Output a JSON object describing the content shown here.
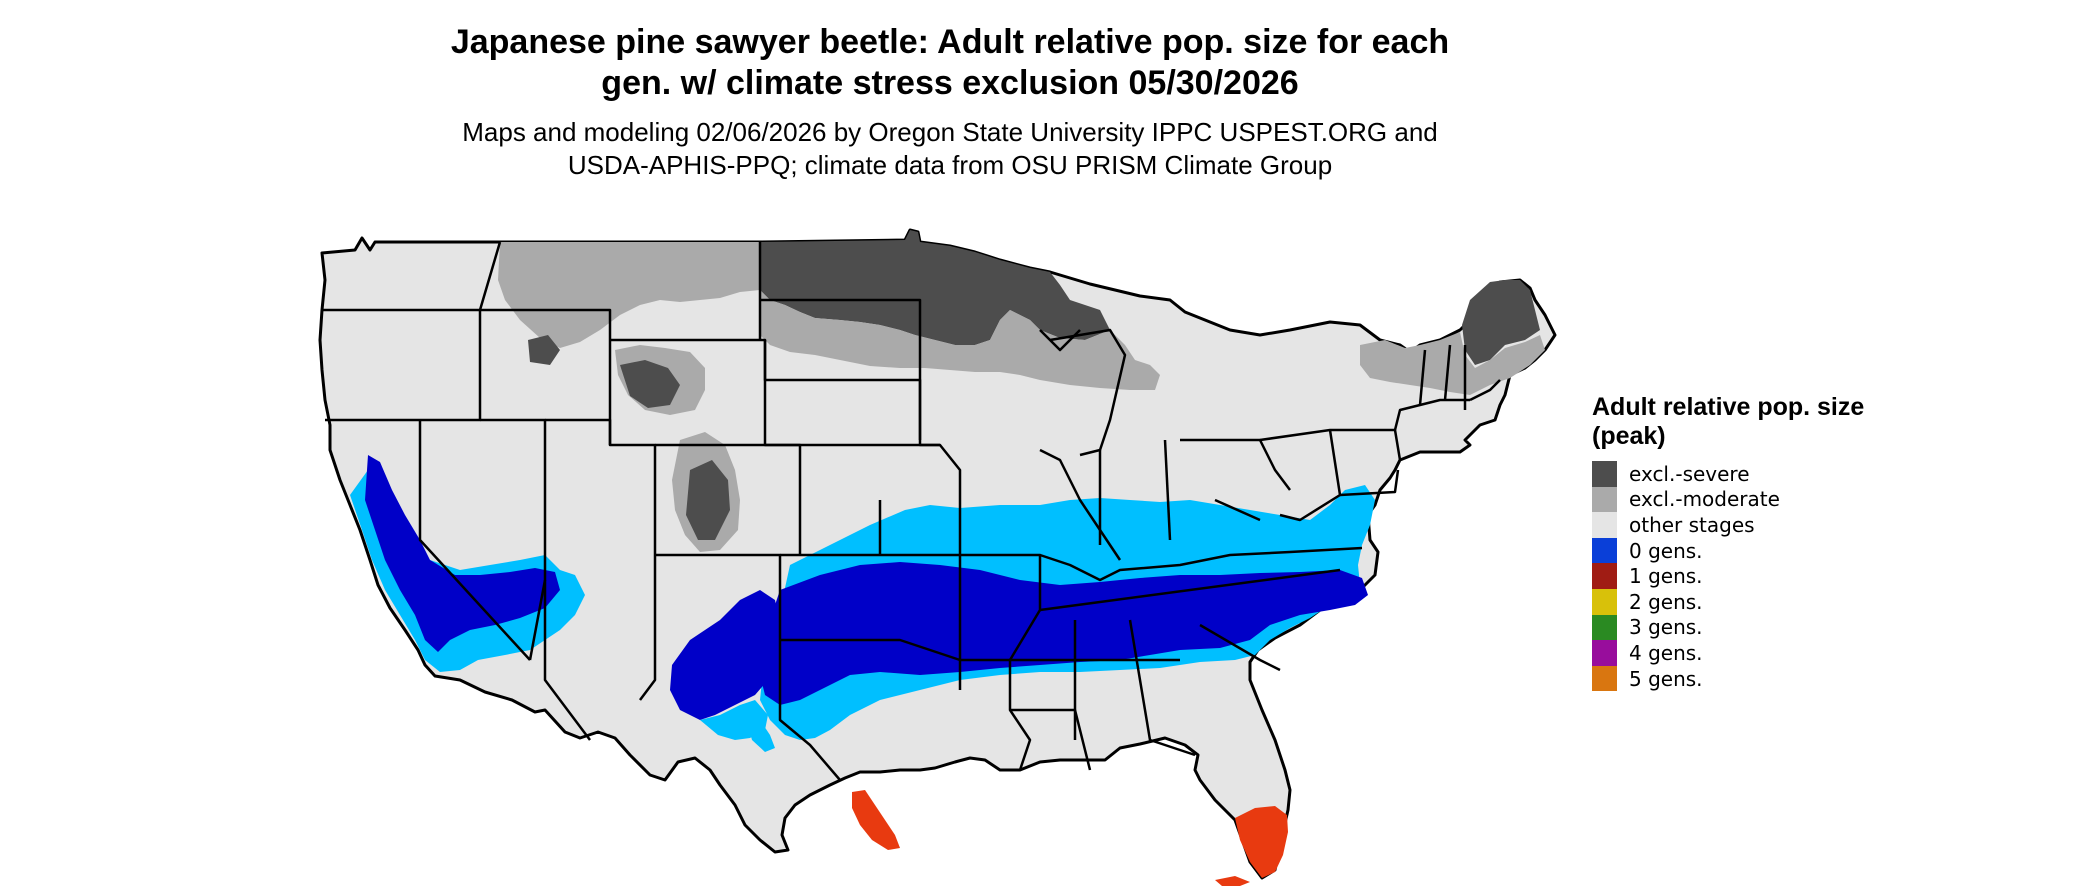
{
  "title": "Japanese pine sawyer beetle: Adult relative pop. size for each gen. w/ climate stress exclusion 05/30/2026",
  "subtitle": "Maps and modeling 02/06/2026 by Oregon State University IPPC USPEST.ORG and USDA-APHIS-PPQ; climate data from OSU PRISM Climate Group",
  "legend": {
    "title": "Adult relative pop. size (peak)",
    "items": [
      {
        "label": "excl.-severe",
        "color": "#4d4d4d"
      },
      {
        "label": "excl.-moderate",
        "color": "#aaaaaa"
      },
      {
        "label": "other stages",
        "color": "#e5e5e5"
      },
      {
        "label": "0 gens.",
        "color": "#0a3fd8"
      },
      {
        "label": "1 gens.",
        "color": "#a01c14"
      },
      {
        "label": "2 gens.",
        "color": "#d8c10a"
      },
      {
        "label": "3 gens.",
        "color": "#2a8a22"
      },
      {
        "label": "4 gens.",
        "color": "#980d9c"
      },
      {
        "label": "5 gens.",
        "color": "#d97610"
      }
    ]
  },
  "map_colors": {
    "dark_blue": "#0000c8",
    "light_blue": "#00bfff",
    "florida_red": "#e83a10",
    "state_border": "#000000"
  }
}
